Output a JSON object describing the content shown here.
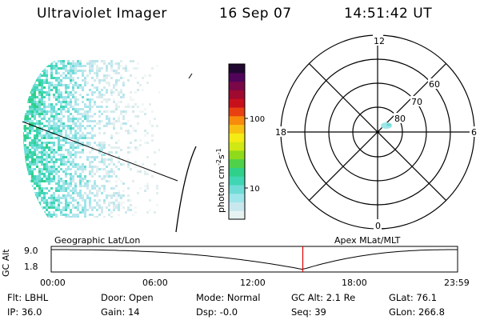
{
  "header": {
    "instrument": "Ultraviolet Imager",
    "date": "16 Sep 07",
    "time": "14:51:42 UT"
  },
  "colorbar": {
    "unit_label": "photon cm",
    "unit_exp1": "-2",
    "unit_mid": "s",
    "unit_exp2": "-1",
    "tick_labels": [
      "100",
      "10"
    ],
    "stops": [
      "#e6f2f2",
      "#c8e8ee",
      "#9fe6ea",
      "#6fdcd6",
      "#3fd6b4",
      "#2fd08a",
      "#4fd24a",
      "#8fda1a",
      "#d0e814",
      "#f4ec14",
      "#f8c010",
      "#f88a0c",
      "#e84010",
      "#c8101c",
      "#a00a30",
      "#7a0848",
      "#50045a",
      "#200830"
    ]
  },
  "polar": {
    "mlt_labels": {
      "top": "12",
      "bottom": "0",
      "left": "18",
      "right": "6"
    },
    "lat_labels": [
      "60",
      "70",
      "80"
    ]
  },
  "timeline": {
    "left_label": "Geographic Lat/Lon",
    "right_label": "Apex MLat/MLT",
    "axis_title": "GC Alt",
    "y_ticks": [
      "9.0",
      "1.8"
    ],
    "x_ticks": [
      "00:00",
      "06:00",
      "12:00",
      "18:00",
      "23:59"
    ],
    "current_time_hours": 14.86
  },
  "info": {
    "flt": "Flt: LBHL",
    "ip": "IP: 36.0",
    "door": "Door: Open",
    "gain": "Gain: 14",
    "mode": "Mode: Normal",
    "dsp": "Dsp:   -0.0",
    "gcalt": "GC Alt: 2.1 Re",
    "seq": "Seq: 39",
    "glat": "GLat:  76.1",
    "glon": "GLon: 266.8"
  }
}
